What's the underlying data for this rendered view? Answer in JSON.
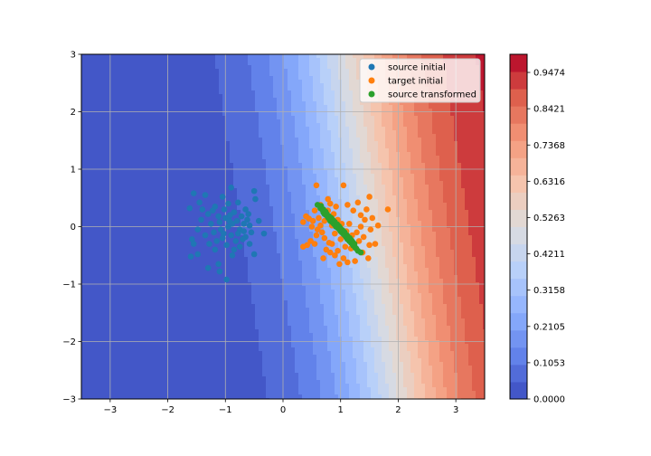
{
  "colors": {
    "source_initial": "#1f77b4",
    "target_initial": "#ff7f0e",
    "source_transformed": "#2ca02c",
    "grid": "#b0b0b0",
    "colormap": "coolwarm"
  },
  "chart_data": [
    {
      "type": "scatter",
      "title": "",
      "xlabel": "",
      "ylabel": "",
      "xlim": [
        -3.5,
        3.5
      ],
      "ylim": [
        -3,
        3
      ],
      "x_ticks": [
        -3,
        -2,
        -1,
        0,
        1,
        2,
        3
      ],
      "x_tick_labels": [
        "−3",
        "−2",
        "−1",
        "0",
        "1",
        "2",
        "3"
      ],
      "y_ticks": [
        -3,
        -2,
        -1,
        0,
        1,
        2,
        3
      ],
      "y_tick_labels": [
        "−3",
        "−2",
        "−1",
        "0",
        "1",
        "2",
        "3"
      ],
      "grid": true,
      "legend_placement": "upper right",
      "background": {
        "type": "filled-contour",
        "colormap": "coolwarm",
        "description": "decision probability increasing from left to right",
        "levels": 20
      },
      "series": [
        {
          "name": "source initial",
          "color": "#1f77b4",
          "points": [
            [
              -1.55,
              0.58
            ],
            [
              -1.62,
              0.32
            ],
            [
              -1.45,
              0.42
            ],
            [
              -1.35,
              0.55
            ],
            [
              -1.18,
              0.35
            ],
            [
              -1.05,
              0.52
            ],
            [
              -0.9,
              0.68
            ],
            [
              -0.78,
              0.42
            ],
            [
              -0.65,
              0.3
            ],
            [
              -0.5,
              0.62
            ],
            [
              -0.48,
              0.48
            ],
            [
              -0.42,
              0.1
            ],
            [
              -0.33,
              -0.12
            ],
            [
              -1.42,
              0.12
            ],
            [
              -1.48,
              -0.05
            ],
            [
              -1.58,
              -0.22
            ],
            [
              -1.55,
              -0.3
            ],
            [
              -1.6,
              -0.52
            ],
            [
              -1.48,
              -0.48
            ],
            [
              -1.3,
              -0.72
            ],
            [
              -1.12,
              -0.65
            ],
            [
              -1.1,
              -0.78
            ],
            [
              -0.98,
              -0.92
            ],
            [
              -0.88,
              -0.5
            ],
            [
              -0.75,
              -0.35
            ],
            [
              -0.58,
              -0.3
            ],
            [
              -0.5,
              -0.48
            ],
            [
              -1.3,
              0.22
            ],
            [
              -1.25,
              0.05
            ],
            [
              -1.2,
              -0.1
            ],
            [
              -1.15,
              -0.25
            ],
            [
              -1.05,
              -0.2
            ],
            [
              -1.0,
              0.15
            ],
            [
              -0.95,
              0.0
            ],
            [
              -0.9,
              -0.15
            ],
            [
              -0.85,
              0.25
            ],
            [
              -0.8,
              0.1
            ],
            [
              -0.75,
              -0.05
            ],
            [
              -0.72,
              0.18
            ],
            [
              -0.68,
              0.05
            ],
            [
              -0.65,
              -0.18
            ],
            [
              -0.6,
              0.22
            ],
            [
              -0.58,
              0.02
            ],
            [
              -0.55,
              -0.1
            ],
            [
              -1.1,
              0.08
            ],
            [
              -1.08,
              -0.05
            ],
            [
              -1.02,
              0.3
            ],
            [
              -0.98,
              -0.32
            ],
            [
              -0.92,
              0.2
            ],
            [
              -0.88,
              0.05
            ],
            [
              -0.82,
              -0.25
            ],
            [
              -0.78,
              -0.12
            ],
            [
              -0.7,
              -0.22
            ],
            [
              -1.35,
              -0.15
            ],
            [
              -1.28,
              -0.3
            ],
            [
              -1.22,
              0.28
            ],
            [
              -1.18,
              -0.4
            ],
            [
              -1.12,
              0.18
            ],
            [
              -0.95,
              0.4
            ],
            [
              -0.85,
              -0.4
            ],
            [
              -0.68,
              -0.08
            ],
            [
              -0.62,
              0.12
            ],
            [
              -1.4,
              0.3
            ],
            [
              -1.03,
              -0.12
            ],
            [
              -0.93,
              0.1
            ]
          ]
        },
        {
          "name": "target initial",
          "color": "#ff7f0e",
          "points": [
            [
              0.58,
              0.72
            ],
            [
              1.05,
              0.72
            ],
            [
              0.78,
              0.48
            ],
            [
              0.65,
              0.38
            ],
            [
              0.55,
              0.28
            ],
            [
              0.92,
              0.35
            ],
            [
              1.12,
              0.38
            ],
            [
              1.3,
              0.42
            ],
            [
              1.5,
              0.52
            ],
            [
              1.45,
              0.3
            ],
            [
              1.82,
              0.3
            ],
            [
              1.65,
              0.02
            ],
            [
              1.52,
              -0.05
            ],
            [
              1.42,
              0.12
            ],
            [
              1.35,
              0.2
            ],
            [
              1.22,
              0.28
            ],
            [
              0.4,
              0.18
            ],
            [
              0.35,
              0.08
            ],
            [
              0.45,
              0.14
            ],
            [
              0.5,
              0.0
            ],
            [
              0.6,
              -0.05
            ],
            [
              0.58,
              -0.15
            ],
            [
              0.48,
              -0.25
            ],
            [
              0.42,
              -0.32
            ],
            [
              0.35,
              -0.35
            ],
            [
              0.55,
              -0.3
            ],
            [
              0.68,
              -0.1
            ],
            [
              0.72,
              -0.2
            ],
            [
              0.8,
              -0.28
            ],
            [
              0.75,
              -0.4
            ],
            [
              0.82,
              -0.45
            ],
            [
              0.9,
              -0.5
            ],
            [
              0.98,
              -0.65
            ],
            [
              1.05,
              -0.55
            ],
            [
              1.12,
              -0.62
            ],
            [
              1.25,
              -0.6
            ],
            [
              1.38,
              -0.45
            ],
            [
              1.48,
              -0.55
            ],
            [
              1.5,
              -0.32
            ],
            [
              1.4,
              -0.18
            ],
            [
              1.32,
              -0.25
            ],
            [
              1.2,
              -0.15
            ],
            [
              1.1,
              -0.08
            ],
            [
              1.02,
              0.05
            ],
            [
              0.95,
              0.12
            ],
            [
              0.88,
              0.22
            ],
            [
              0.85,
              0.02
            ],
            [
              0.9,
              -0.12
            ],
            [
              1.0,
              -0.22
            ],
            [
              1.08,
              -0.35
            ],
            [
              1.18,
              -0.38
            ],
            [
              1.28,
              -0.1
            ],
            [
              1.15,
              0.05
            ],
            [
              0.72,
              0.1
            ],
            [
              0.65,
              0.02
            ],
            [
              0.62,
              0.15
            ],
            [
              0.78,
              0.28
            ],
            [
              0.85,
              -0.3
            ],
            [
              0.95,
              -0.42
            ],
            [
              1.6,
              -0.3
            ],
            [
              1.55,
              0.15
            ],
            [
              0.52,
              0.1
            ],
            [
              0.82,
              0.4
            ],
            [
              1.35,
              0.0
            ],
            [
              0.7,
              -0.55
            ]
          ]
        },
        {
          "name": "source transformed",
          "color": "#2ca02c",
          "points": [
            [
              0.6,
              0.38
            ],
            [
              0.65,
              0.32
            ],
            [
              0.68,
              0.3
            ],
            [
              0.7,
              0.25
            ],
            [
              0.72,
              0.22
            ],
            [
              0.75,
              0.2
            ],
            [
              0.78,
              0.16
            ],
            [
              0.8,
              0.14
            ],
            [
              0.82,
              0.1
            ],
            [
              0.85,
              0.08
            ],
            [
              0.88,
              0.05
            ],
            [
              0.9,
              0.03
            ],
            [
              0.92,
              0.0
            ],
            [
              0.95,
              -0.02
            ],
            [
              0.98,
              -0.05
            ],
            [
              1.0,
              -0.08
            ],
            [
              1.02,
              -0.1
            ],
            [
              1.05,
              -0.13
            ],
            [
              1.08,
              -0.16
            ],
            [
              1.1,
              -0.19
            ],
            [
              1.12,
              -0.22
            ],
            [
              1.15,
              -0.25
            ],
            [
              1.18,
              -0.28
            ],
            [
              1.2,
              -0.3
            ],
            [
              1.22,
              -0.33
            ],
            [
              1.25,
              -0.36
            ],
            [
              1.3,
              -0.42
            ],
            [
              1.35,
              -0.45
            ],
            [
              0.66,
              0.36
            ],
            [
              0.74,
              0.26
            ],
            [
              0.8,
              0.18
            ],
            [
              0.86,
              0.12
            ],
            [
              0.9,
              0.08
            ],
            [
              0.94,
              0.04
            ],
            [
              0.97,
              0.01
            ],
            [
              1.03,
              -0.06
            ],
            [
              1.07,
              -0.1
            ],
            [
              1.11,
              -0.15
            ],
            [
              1.16,
              -0.2
            ],
            [
              1.19,
              -0.24
            ],
            [
              1.24,
              -0.3
            ],
            [
              1.27,
              -0.38
            ],
            [
              0.7,
              0.3
            ],
            [
              0.84,
              0.15
            ],
            [
              0.99,
              -0.02
            ],
            [
              1.13,
              -0.18
            ],
            [
              0.88,
              0.1
            ],
            [
              1.05,
              -0.08
            ],
            [
              0.76,
              0.22
            ],
            [
              1.21,
              -0.27
            ]
          ]
        }
      ]
    },
    {
      "type": "colorbar",
      "colormap": "coolwarm",
      "levels": 20,
      "ylim": [
        0,
        1
      ],
      "tick_values": [
        0.0,
        0.1053,
        0.2105,
        0.3158,
        0.4211,
        0.5263,
        0.6316,
        0.7368,
        0.8421,
        0.9474
      ],
      "tick_labels": [
        "0.0000",
        "0.1053",
        "0.2105",
        "0.3158",
        "0.4211",
        "0.5263",
        "0.6316",
        "0.7368",
        "0.8421",
        "0.9474"
      ]
    }
  ]
}
